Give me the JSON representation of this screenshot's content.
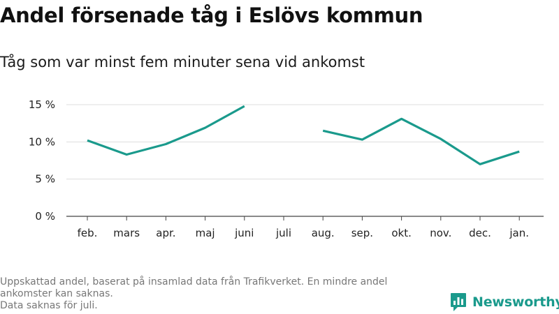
{
  "title": "Andel försenade tåg i Eslövs kommun",
  "subtitle": "Tåg som var minst fem minuter sena vid ankomst",
  "footer": {
    "line1": "Uppskattad andel, baserat på insamlad data från Trafikverket. En mindre andel ankomster kan saknas.",
    "line2": "Data saknas för juli."
  },
  "brand": {
    "name": "Newsworthy",
    "logo_icon": "bar-chart-speech-bubble-icon",
    "color": "#1a9a8c"
  },
  "chart_data": {
    "type": "line",
    "categories": [
      "feb.",
      "mars",
      "apr.",
      "maj",
      "juni",
      "juli",
      "aug.",
      "sep.",
      "okt.",
      "nov.",
      "dec.",
      "jan."
    ],
    "series": [
      {
        "values": [
          10.2,
          8.3,
          9.7,
          11.9,
          14.8,
          null,
          11.5,
          10.3,
          13.1,
          10.4,
          7.0,
          8.7
        ]
      }
    ],
    "yticks": [
      0,
      5,
      10,
      15
    ],
    "ytick_labels": [
      "0 %",
      "5 %",
      "10 %",
      "15 %"
    ],
    "ylim": [
      0,
      15
    ],
    "grid": true,
    "line_color": "#1a9a8c",
    "xlabel": "",
    "ylabel": ""
  }
}
